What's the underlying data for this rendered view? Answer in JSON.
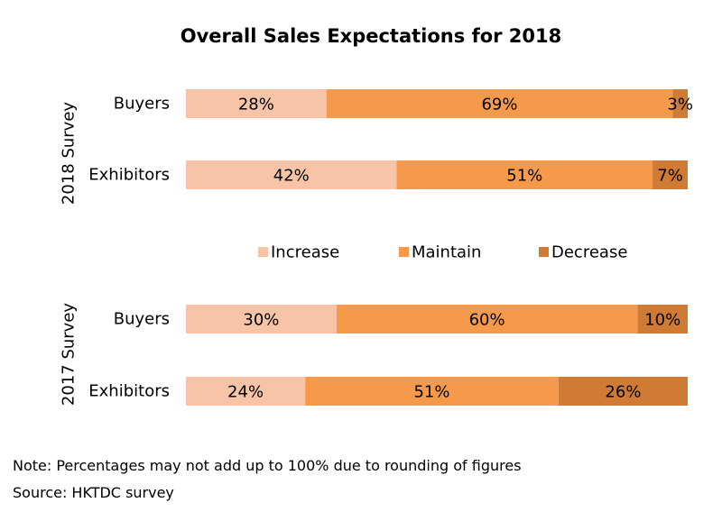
{
  "chart_data": {
    "type": "bar",
    "orientation": "horizontal",
    "stacked": true,
    "title": "Overall Sales Expectations for 2018",
    "groups": [
      {
        "name": "2018 Survey",
        "categories": [
          "Buyers",
          "Exhibitors"
        ],
        "series": [
          {
            "name": "Increase",
            "values": [
              28,
              42
            ],
            "labels": [
              "28%",
              "42%"
            ]
          },
          {
            "name": "Maintain",
            "values": [
              69,
              51
            ],
            "labels": [
              "69%",
              "51%"
            ]
          },
          {
            "name": "Decrease",
            "values": [
              3,
              7
            ],
            "labels": [
              "3%",
              "7%"
            ]
          }
        ]
      },
      {
        "name": "2017 Survey",
        "categories": [
          "Buyers",
          "Exhibitors"
        ],
        "series": [
          {
            "name": "Increase",
            "values": [
              30,
              24
            ],
            "labels": [
              "30%",
              "24%"
            ]
          },
          {
            "name": "Maintain",
            "values": [
              60,
              51
            ],
            "labels": [
              "60%",
              "51%"
            ]
          },
          {
            "name": "Decrease",
            "values": [
              10,
              26
            ],
            "labels": [
              "10%",
              "26%"
            ]
          }
        ]
      }
    ],
    "legend": {
      "position": "center",
      "entries": [
        "Increase",
        "Maintain",
        "Decrease"
      ]
    },
    "colors": {
      "Increase": "#F8C4A7",
      "Maintain": "#F5994A",
      "Decrease": "#CF7A35"
    },
    "xlim": [
      0,
      100
    ],
    "grid": false
  },
  "footnotes": {
    "note": "Note: Percentages may not add up to 100% due to rounding of figures",
    "source": "Source: HKTDC survey"
  }
}
